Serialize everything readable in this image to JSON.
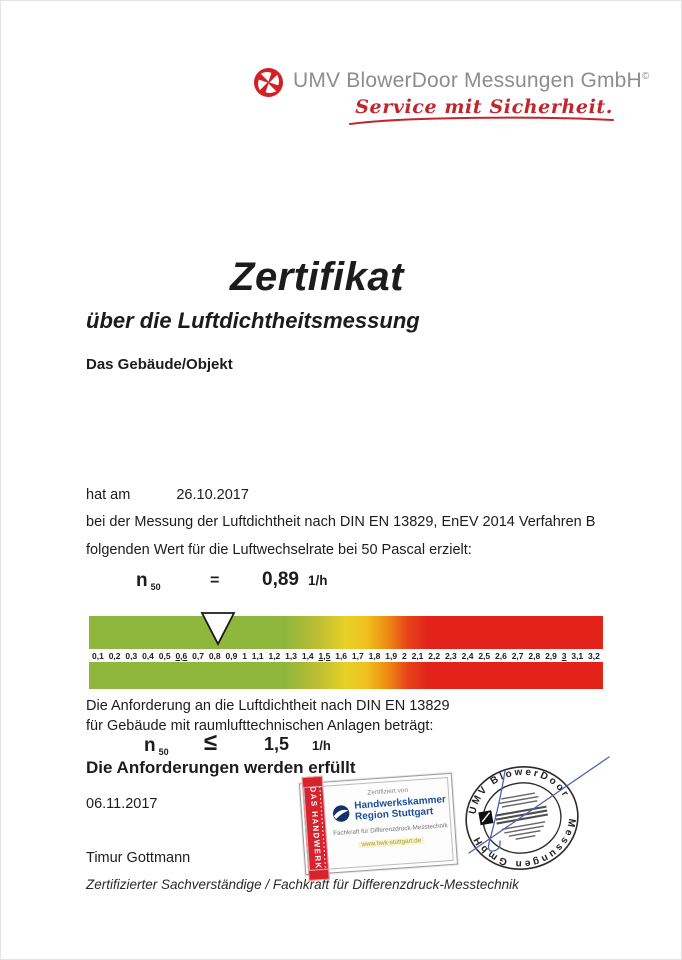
{
  "header": {
    "company": "UMV BlowerDoor Messungen GmbH",
    "copyright_mark": "©",
    "tagline": "Service mit Sicherheit.",
    "logo_icon": "pinwheel-cross-icon"
  },
  "title": "Zertifikat",
  "subtitle": "über die Luftdichtheitsmessung",
  "object_label": "Das Gebäude/Objekt",
  "measurement": {
    "prefix": "hat am",
    "date": "26.10.2017",
    "line2": "bei der Messung der Luftdichtheit nach DIN EN 13829, EnEV 2014 Verfahren B",
    "line3": "folgenden Wert für die Luftwechselrate bei 50 Pascal erzielt:",
    "symbol": "n",
    "subscript": "50",
    "operator": "=",
    "value": "0,89",
    "unit": "1/h"
  },
  "scale": {
    "ticks": [
      "0,1",
      "0,2",
      "0,3",
      "0,4",
      "0,5",
      "0,6",
      "0,7",
      "0,8",
      "0,9",
      "1",
      "1,1",
      "1,2",
      "1,3",
      "1,4",
      "1,5",
      "1,6",
      "1,7",
      "1,8",
      "1,9",
      "2",
      "2,1",
      "2,2",
      "2,3",
      "2,4",
      "2,5",
      "2,6",
      "2,7",
      "2,8",
      "2,9",
      "3",
      "3,1",
      "3,2"
    ],
    "emphasized": [
      "0,6",
      "1,5",
      "3"
    ],
    "marker_points_to": "0,89",
    "colors": {
      "green": "#8fb63d",
      "yellow": "#e8d026",
      "red": "#e3231a"
    }
  },
  "requirement": {
    "line1": "Die Anforderung an die Luftdichtheit nach DIN EN 13829",
    "line2": "für Gebäude mit raumlufttechnischen Anlagen beträgt:",
    "symbol": "n",
    "subscript": "50",
    "operator": "≤",
    "value": "1,5",
    "unit": "1/h",
    "result": "Die Anforderungen werden erfüllt"
  },
  "footer": {
    "issue_date": "06.11.2017",
    "signer_name": "Timur Gottmann",
    "signer_title": "Zertifizierter Sachverständige / Fachkraft für Differenzdruck-Messtechnik"
  },
  "stamps": {
    "hwk_card": {
      "ribbon_title": "DAS HANDWERK",
      "certified_by": "Zertifiziert von",
      "org_line1": "Handwerkskammer",
      "org_line2": "Region Stuttgart",
      "qualification": "Fachkraft für Differenzdruck-Messtechnik",
      "website": "www.hwk-stuttgart.de"
    },
    "round_stamp": {
      "ring_text_top": "UMV BlowerDoor",
      "ring_text_bottom": "Messungen GmbH"
    }
  },
  "colors": {
    "accent_red": "#c2252b",
    "logo_red": "#d22027",
    "header_gray": "#8d8d8d",
    "hwk_blue": "#1d4f9e",
    "ribbon_red": "#d8232e",
    "signature_blue": "#4e63b5",
    "website_olive": "#a39c2c"
  }
}
